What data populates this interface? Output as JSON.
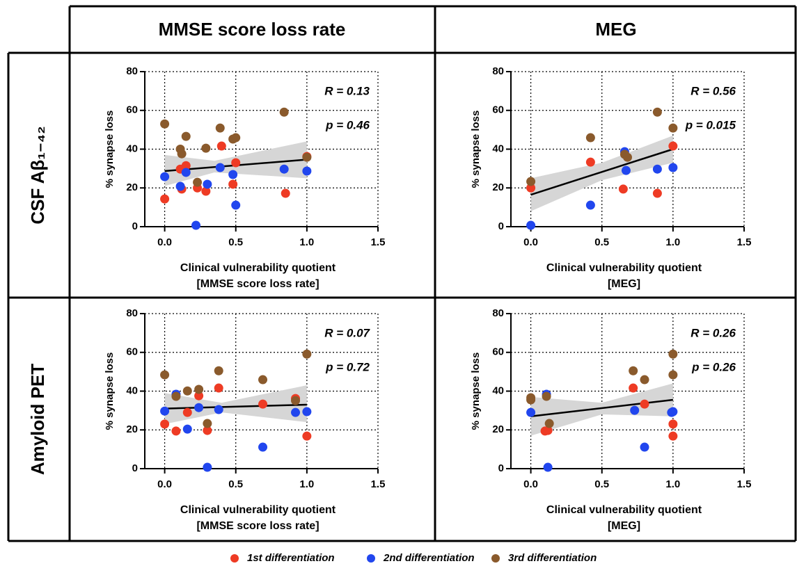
{
  "columns": [
    "MMSE score loss rate",
    "MEG"
  ],
  "rows": [
    "CSF Aβ₁₋₄₂",
    "Amyloid PET"
  ],
  "chart_data": [
    {
      "type": "scatter",
      "x_label": [
        "Clinical vulnerability quotient",
        "[MMSE score loss rate]"
      ],
      "y_label": "% synapse loss",
      "annotations": [
        "R = 0.13",
        "p = 0.46"
      ],
      "xlim": [
        -0.14,
        1.5
      ],
      "ylim": [
        0,
        80
      ],
      "xticks": [
        {
          "value": 0,
          "label": "0.0"
        },
        0.5,
        {
          "value": 1,
          "label": "1.0"
        },
        1.5
      ],
      "yticks": [
        0,
        20,
        40,
        60,
        80
      ],
      "grid": true,
      "series": [
        {
          "name": "1st differentiation",
          "color": "#ee3b24",
          "x": [
            0,
            0.11,
            0.12,
            0.15,
            0.23,
            0.29,
            0.4,
            0.48,
            0.5,
            0.85,
            1.0
          ],
          "values": [
            14.3,
            29.7,
            19.4,
            31.5,
            20,
            18.3,
            41.6,
            21.9,
            33,
            17.2,
            36.2
          ]
        },
        {
          "name": "2nd differentiation",
          "color": "#2146ee",
          "x": [
            0,
            0.11,
            0.15,
            0.22,
            0.3,
            0.39,
            0.48,
            0.5,
            0.84,
            1.0
          ],
          "values": [
            25.8,
            20.8,
            28,
            0.7,
            21.9,
            30.5,
            26.9,
            11.1,
            29.7,
            28.7
          ]
        },
        {
          "name": "3rd differentiation",
          "color": "#8a5a2c",
          "x": [
            0,
            0.11,
            0.12,
            0.15,
            0.23,
            0.29,
            0.39,
            0.48,
            0.5,
            0.84,
            1.0
          ],
          "values": [
            53,
            40,
            37.6,
            46.6,
            22.9,
            40.5,
            50.9,
            45.2,
            45.9,
            59.1,
            35.8
          ]
        }
      ],
      "fit": {
        "x": [
          0,
          1
        ],
        "y": [
          28.7,
          34.6
        ]
      },
      "ci": {
        "x": [
          0,
          0.35,
          1
        ],
        "lower": [
          21,
          28,
          25
        ],
        "upper": [
          37,
          34,
          44
        ]
      }
    },
    {
      "type": "scatter",
      "x_label": [
        "Clinical vulnerability quotient",
        "[MEG]"
      ],
      "y_label": "% synapse loss",
      "annotations": [
        "R = 0.56",
        "p = 0.015"
      ],
      "xlim": [
        -0.14,
        1.5
      ],
      "ylim": [
        0,
        80
      ],
      "xticks": [
        {
          "value": 0,
          "label": "0.0"
        },
        0.5,
        {
          "value": 1,
          "label": "1.0"
        },
        1.5
      ],
      "yticks": [
        0,
        20,
        40,
        60,
        80
      ],
      "grid": true,
      "series": [
        {
          "name": "1st differentiation",
          "color": "#ee3b24",
          "x": [
            0,
            0.42,
            0.65,
            0.89,
            1.0
          ],
          "values": [
            20,
            33.3,
            19.4,
            17.2,
            41.6
          ]
        },
        {
          "name": "2nd differentiation",
          "color": "#2146ee",
          "x": [
            0,
            0.42,
            0.66,
            0.67,
            0.89,
            1.0
          ],
          "values": [
            0.7,
            11.1,
            38.7,
            29,
            29.7,
            30.5
          ]
        },
        {
          "name": "3rd differentiation",
          "color": "#8a5a2c",
          "x": [
            0,
            0.42,
            0.66,
            0.68,
            0.89,
            1.0
          ],
          "values": [
            23.3,
            45.9,
            37.3,
            35.8,
            59.1,
            50.9
          ]
        }
      ],
      "fit": {
        "x": [
          0,
          1
        ],
        "y": [
          16.5,
          40
        ]
      },
      "ci": {
        "x": [
          0,
          0.5,
          1
        ],
        "lower": [
          8,
          24,
          33
        ],
        "upper": [
          25,
          33,
          47
        ]
      }
    },
    {
      "type": "scatter",
      "x_label": [
        "Clinical vulnerability quotient",
        "[MMSE score loss rate]"
      ],
      "y_label": "% synapse loss",
      "annotations": [
        "R = 0.07",
        "p = 0.72"
      ],
      "xlim": [
        -0.14,
        1.5
      ],
      "ylim": [
        0,
        80
      ],
      "xticks": [
        {
          "value": 0,
          "label": "0.0"
        },
        0.5,
        {
          "value": 1,
          "label": "1.0"
        },
        1.5
      ],
      "yticks": [
        0,
        20,
        40,
        60,
        80
      ],
      "grid": true,
      "series": [
        {
          "name": "1st differentiation",
          "color": "#ee3b24",
          "x": [
            0,
            0.08,
            0.16,
            0.24,
            0.3,
            0.38,
            0.69,
            0.92,
            1.0
          ],
          "values": [
            23,
            19.4,
            29,
            37.6,
            19.7,
            41.6,
            33.3,
            36.2,
            16.8
          ]
        },
        {
          "name": "2nd differentiation",
          "color": "#2146ee",
          "x": [
            0,
            0.08,
            0.16,
            0.24,
            0.3,
            0.38,
            0.69,
            0.92,
            1.0
          ],
          "values": [
            29.7,
            38.4,
            20.4,
            31.5,
            0.7,
            30.5,
            11.1,
            29,
            29.4
          ]
        },
        {
          "name": "3rd differentiation",
          "color": "#8a5a2c",
          "x": [
            0,
            0.08,
            0.16,
            0.24,
            0.3,
            0.38,
            0.69,
            0.92,
            1.0
          ],
          "values": [
            48.4,
            37.3,
            40.1,
            40.9,
            23.3,
            50.5,
            45.9,
            35.1,
            59.1
          ]
        }
      ],
      "fit": {
        "x": [
          0,
          1
        ],
        "y": [
          31,
          33
        ]
      },
      "ci": {
        "x": [
          0,
          0.4,
          1
        ],
        "lower": [
          23,
          29,
          24
        ],
        "upper": [
          39,
          34,
          43
        ]
      }
    },
    {
      "type": "scatter",
      "x_label": [
        "Clinical vulnerability quotient",
        "[MEG]"
      ],
      "y_label": "% synapse loss",
      "annotations": [
        "R = 0.26",
        "p = 0.26"
      ],
      "xlim": [
        -0.14,
        1.5
      ],
      "ylim": [
        0,
        80
      ],
      "xticks": [
        {
          "value": 0,
          "label": "0.0"
        },
        0.5,
        {
          "value": 1,
          "label": "1.0"
        },
        1.5
      ],
      "yticks": [
        0,
        20,
        40,
        60,
        80
      ],
      "grid": true,
      "series": [
        {
          "name": "1st differentiation",
          "color": "#ee3b24",
          "x": [
            0.1,
            0.12,
            0.72,
            0.8,
            1.0,
            1.0
          ],
          "values": [
            19.4,
            19.7,
            41.6,
            33.3,
            23,
            16.8
          ]
        },
        {
          "name": "2nd differentiation",
          "color": "#2146ee",
          "x": [
            0,
            0.11,
            0.12,
            0.73,
            0.8,
            1.0,
            0.99
          ],
          "values": [
            29,
            38.4,
            0.7,
            30.1,
            11.1,
            29.4,
            29
          ]
        },
        {
          "name": "3rd differentiation",
          "color": "#8a5a2c",
          "x": [
            0,
            0,
            0.11,
            0.13,
            0.72,
            0.8,
            1.0,
            1.0
          ],
          "values": [
            36.6,
            35.5,
            37.3,
            23.3,
            50.5,
            45.9,
            48.4,
            59.1
          ]
        }
      ],
      "fit": {
        "x": [
          0,
          1
        ],
        "y": [
          27,
          35.5
        ]
      },
      "ci": {
        "x": [
          0,
          0.5,
          1
        ],
        "lower": [
          17,
          28,
          27
        ],
        "upper": [
          37,
          34,
          44
        ]
      }
    }
  ]
}
